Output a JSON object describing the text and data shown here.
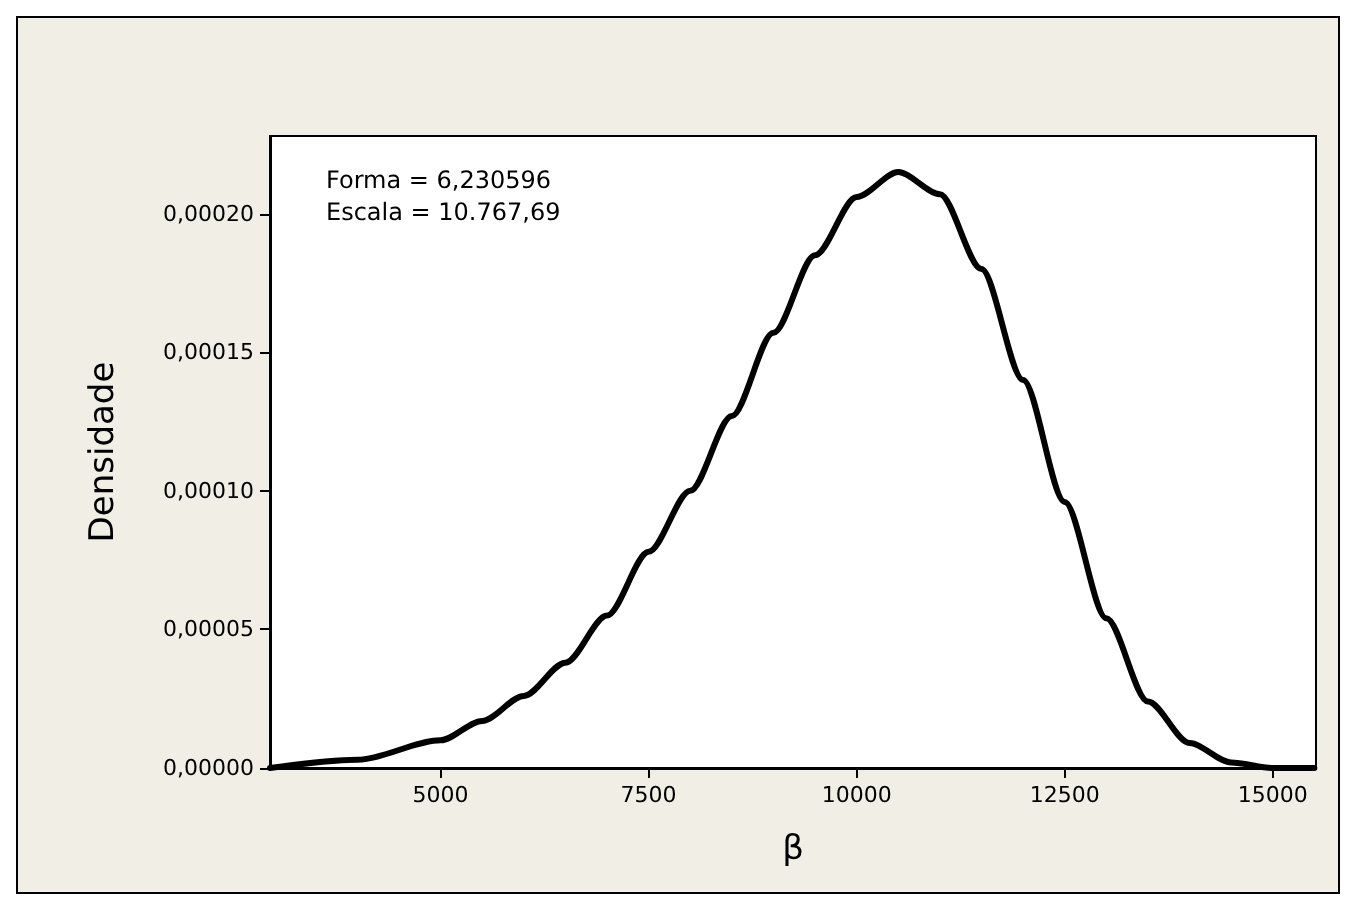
{
  "chart_data": {
    "type": "line",
    "xlabel": "β",
    "ylabel": "Densidade",
    "annotations": [
      "Forma = 6,230596",
      "Escala = 10.767,69"
    ],
    "x": [
      2950,
      4000,
      5000,
      5500,
      6000,
      6500,
      7000,
      7500,
      8000,
      8500,
      9000,
      9500,
      10000,
      10500,
      11000,
      11500,
      12000,
      12500,
      13000,
      13500,
      14000,
      14500,
      15000,
      15500
    ],
    "series": [
      {
        "color": "#000000",
        "values": [
          0,
          3e-06,
          1e-05,
          1.7e-05,
          2.6e-05,
          3.8e-05,
          5.5e-05,
          7.8e-05,
          0.0001,
          0.000127,
          0.000157,
          0.000185,
          0.000206,
          0.000215,
          0.000207,
          0.00018,
          0.00014,
          9.6e-05,
          5.4e-05,
          2.4e-05,
          9e-06,
          2e-06,
          0,
          0
        ]
      }
    ],
    "xlim": [
      2950,
      15520
    ],
    "ylim": [
      0,
      0.000228
    ],
    "xticks": [
      5000,
      7500,
      10000,
      12500,
      15000
    ],
    "yticks": [
      {
        "value": 0,
        "label": "0,00000"
      },
      {
        "value": 5e-05,
        "label": "0,00005"
      },
      {
        "value": 0.0001,
        "label": "0,00010"
      },
      {
        "value": 0.00015,
        "label": "0,00015"
      },
      {
        "value": 0.0002,
        "label": "0,00020"
      }
    ],
    "grid": false,
    "marker": "none",
    "line_style": "solid"
  }
}
